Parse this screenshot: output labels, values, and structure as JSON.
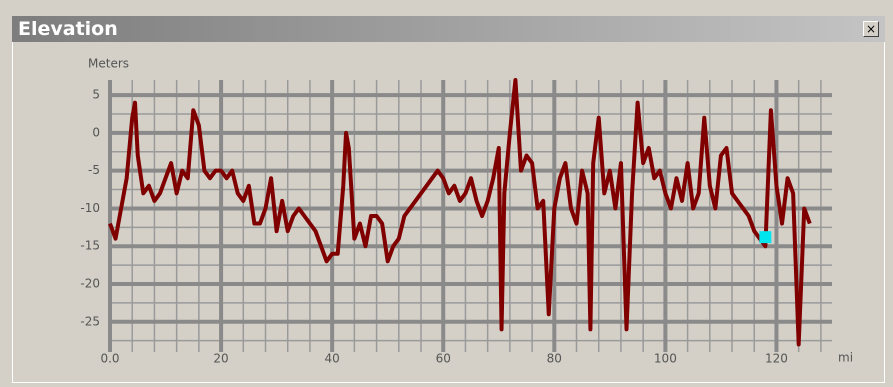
{
  "window": {
    "title": "Elevation"
  },
  "chart_data": {
    "type": "line",
    "y_label": "Meters",
    "x_label": "mi",
    "xlim": [
      0,
      130
    ],
    "ylim": [
      -29,
      7
    ],
    "xticks": [
      {
        "value": 0,
        "label": "0.0"
      },
      20,
      40,
      60,
      80,
      100,
      120
    ],
    "yticks": [
      -25,
      -20,
      -15,
      -10,
      -5,
      0,
      5
    ],
    "x_minor_ticks": [
      4,
      8,
      12,
      16,
      24,
      28,
      32,
      36,
      44,
      48,
      52,
      56,
      64,
      68,
      72,
      76,
      84,
      88,
      92,
      96,
      104,
      108,
      112,
      116,
      124,
      128
    ],
    "y_minor_ticks": [
      -27.5,
      -22.5,
      -17.5,
      -12.5,
      -7.5,
      -2.5,
      2.5
    ],
    "grid": true,
    "series": [
      {
        "name": "Elevation",
        "color": "#800000",
        "x": [
          0,
          1,
          2,
          3,
          4,
          4.5,
          5,
          6,
          7,
          8,
          9,
          10,
          11,
          12,
          13,
          14,
          15,
          16,
          17,
          18,
          19,
          20,
          21,
          22,
          23,
          24,
          25,
          26,
          27,
          28,
          29,
          30,
          31,
          32,
          33,
          34,
          35,
          36,
          37,
          38,
          39,
          40,
          41,
          42,
          42.5,
          43,
          44,
          45,
          46,
          47,
          48,
          49,
          50,
          51,
          52,
          53,
          54,
          55,
          56,
          57,
          58,
          59,
          60,
          61,
          62,
          63,
          64,
          65,
          66,
          67,
          68,
          69,
          70,
          70.5,
          71,
          72,
          73,
          74,
          75,
          76,
          77,
          78,
          79,
          80,
          81,
          82,
          83,
          84,
          85,
          86,
          86.5,
          87,
          88,
          89,
          90,
          91,
          92,
          93,
          94,
          95,
          96,
          97,
          98,
          99,
          100,
          101,
          102,
          103,
          104,
          105,
          106,
          107,
          108,
          109,
          110,
          111,
          112,
          113,
          114,
          115,
          116,
          117,
          118,
          119,
          120,
          121,
          122,
          123,
          124,
          125,
          126
        ],
        "values": [
          -12,
          -14,
          -10,
          -6,
          2,
          4,
          -3,
          -8,
          -7,
          -9,
          -8,
          -6,
          -4,
          -8,
          -5,
          -6,
          3,
          1,
          -5,
          -6,
          -5,
          -5,
          -6,
          -5,
          -8,
          -9,
          -7,
          -12,
          -12,
          -10,
          -6,
          -13,
          -9,
          -13,
          -11,
          -10,
          -11,
          -12,
          -13,
          -15,
          -17,
          -16,
          -16,
          -7,
          0,
          -2,
          -14,
          -12,
          -15,
          -11,
          -11,
          -12,
          -17,
          -15,
          -14,
          -11,
          -10,
          -9,
          -8,
          -7,
          -6,
          -5,
          -6,
          -8,
          -7,
          -9,
          -8,
          -6,
          -9,
          -11,
          -9,
          -6,
          -2,
          -26,
          -8,
          0,
          7,
          -5,
          -3,
          -4,
          -10,
          -9,
          -24,
          -10,
          -6,
          -4,
          -10,
          -12,
          -5,
          -8,
          -26,
          -4,
          2,
          -8,
          -5,
          -10,
          -4,
          -26,
          -8,
          4,
          -4,
          -2,
          -6,
          -5,
          -8,
          -10,
          -6,
          -9,
          -4,
          -10,
          -8,
          2,
          -7,
          -10,
          -3,
          -2,
          -8,
          -9,
          -10,
          -11,
          -13,
          -14,
          -15,
          3,
          -7,
          -12,
          -6,
          -8,
          -28,
          -10,
          -12
        ]
      }
    ],
    "marker": {
      "x": 118,
      "y": -13.8,
      "color": "#00e5ee"
    }
  }
}
